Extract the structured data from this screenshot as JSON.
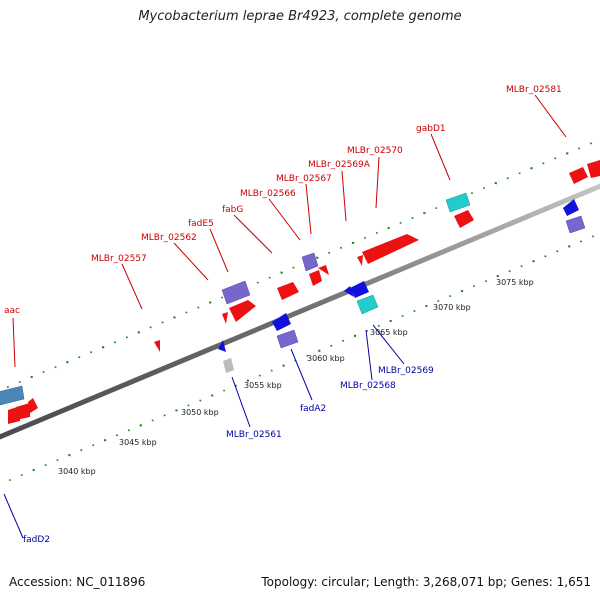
{
  "title": "Mycobacterium leprae Br4923, complete genome",
  "accession": "Accession: NC_011896",
  "summary": "Topology: circular; Length: 3,268,071 bp; Genes: 1,651",
  "colors": {
    "forward_label": "#cc0000",
    "reverse_label": "#0000aa",
    "forward_gene": "#ee1111",
    "reverse_gene": "#1111dd",
    "cyan_gene": "#22cccc",
    "purple_gene": "#7766cc",
    "steel_gene": "#4a86b8",
    "gray_gene": "#bbbbbb",
    "tick": "#228822",
    "backbone": "#7a7a7a"
  },
  "scale_labels": [
    "3040 kbp",
    "3045 kbp",
    "3050 kbp",
    "3055 kbp",
    "3060 kbp",
    "3065 kbp",
    "3070 kbp",
    "3075 kbp"
  ],
  "forward_labels": [
    "aac",
    "MLBr_02557",
    "MLBr_02562",
    "fadE5",
    "fabG",
    "MLBr_02566",
    "MLBr_02567",
    "MLBr_02569A",
    "MLBr_02570",
    "gabD1",
    "MLBr_02581"
  ],
  "reverse_labels": [
    "fadD2",
    "MLBr_02561",
    "fadA2",
    "MLBr_02568",
    "MLBr_02569"
  ]
}
